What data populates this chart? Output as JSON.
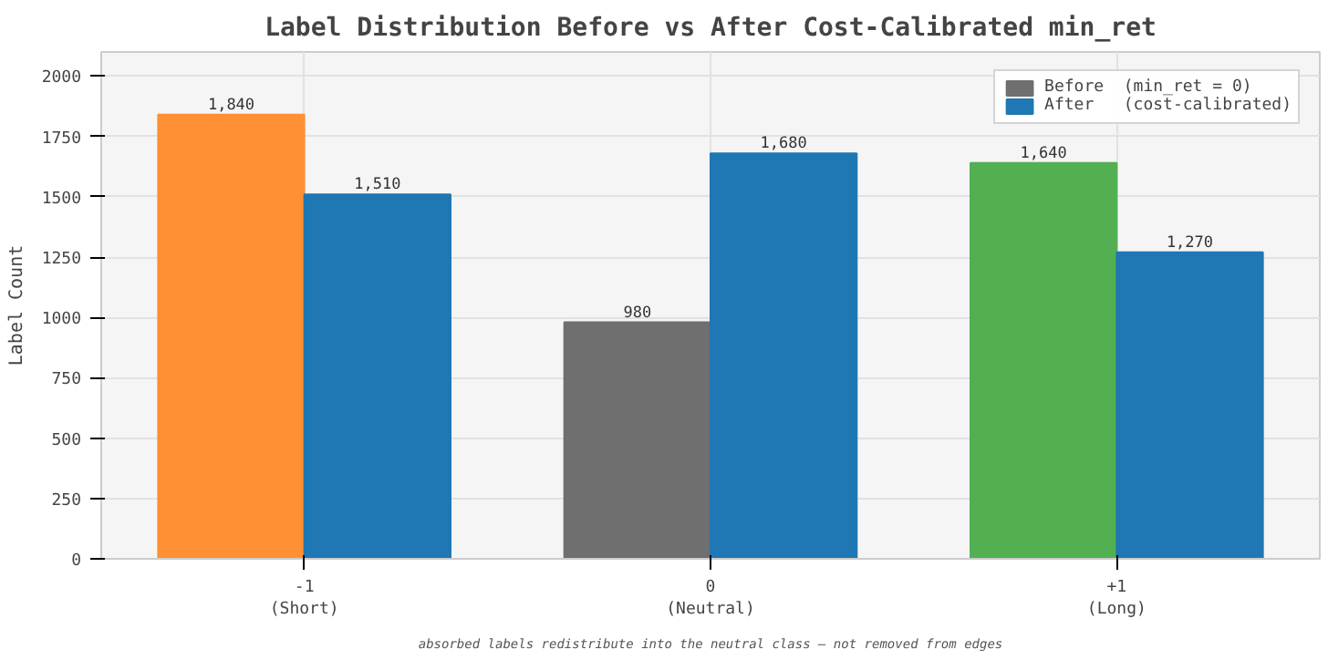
{
  "chart_data": {
    "type": "bar",
    "title": "Label Distribution Before vs After Cost-Calibrated min_ret",
    "ylabel": "Label Count",
    "categories": [
      "-1\n(Short)",
      "0\n(Neutral)",
      "+1\n(Long)"
    ],
    "series": [
      {
        "name": "Before  (min_ret = 0)",
        "color": "#6f6f6f",
        "colors": [
          "#ff9033",
          "#6f6f6f",
          "#52b052"
        ],
        "values": [
          1840,
          980,
          1640
        ],
        "value_labels": [
          "1,840",
          "980",
          "1,640"
        ]
      },
      {
        "name": "After   (cost-calibrated)",
        "color": "#1f77b4",
        "values": [
          1510,
          1680,
          1270
        ],
        "value_labels": [
          "1,510",
          "1,680",
          "1,270"
        ]
      }
    ],
    "ylim": [
      0,
      2100
    ],
    "yticks": [
      0,
      250,
      500,
      750,
      1000,
      1250,
      1500,
      1750,
      2000
    ],
    "grid": true,
    "legend": "top right",
    "annotations": [
      "absorbed labels redistribute into the neutral class — not removed from edges"
    ]
  }
}
